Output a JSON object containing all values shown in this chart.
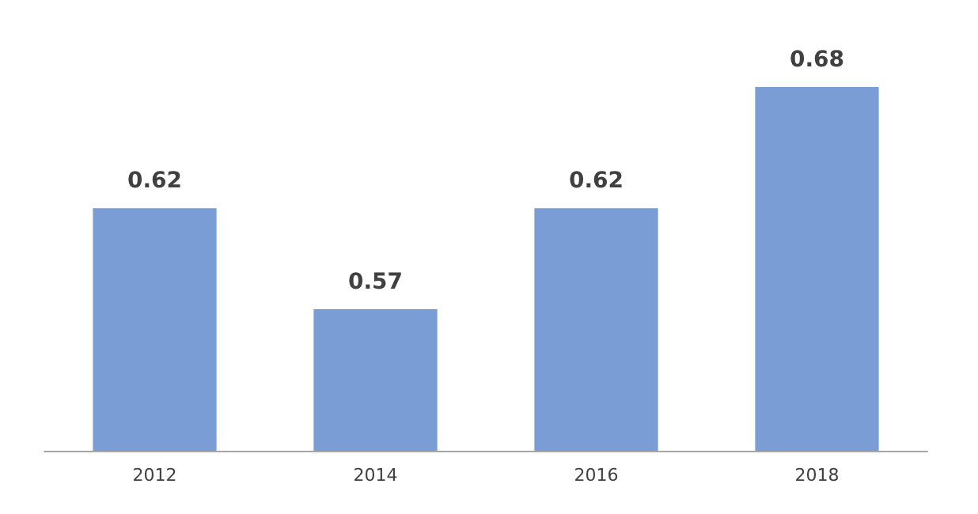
{
  "chart_data": {
    "type": "bar",
    "categories": [
      "2012",
      "2014",
      "2016",
      "2018"
    ],
    "values": [
      0.62,
      0.57,
      0.62,
      0.68
    ],
    "color": "#7b9dd6",
    "data_labels": true,
    "ylim": [
      0.5,
      0.68
    ]
  }
}
